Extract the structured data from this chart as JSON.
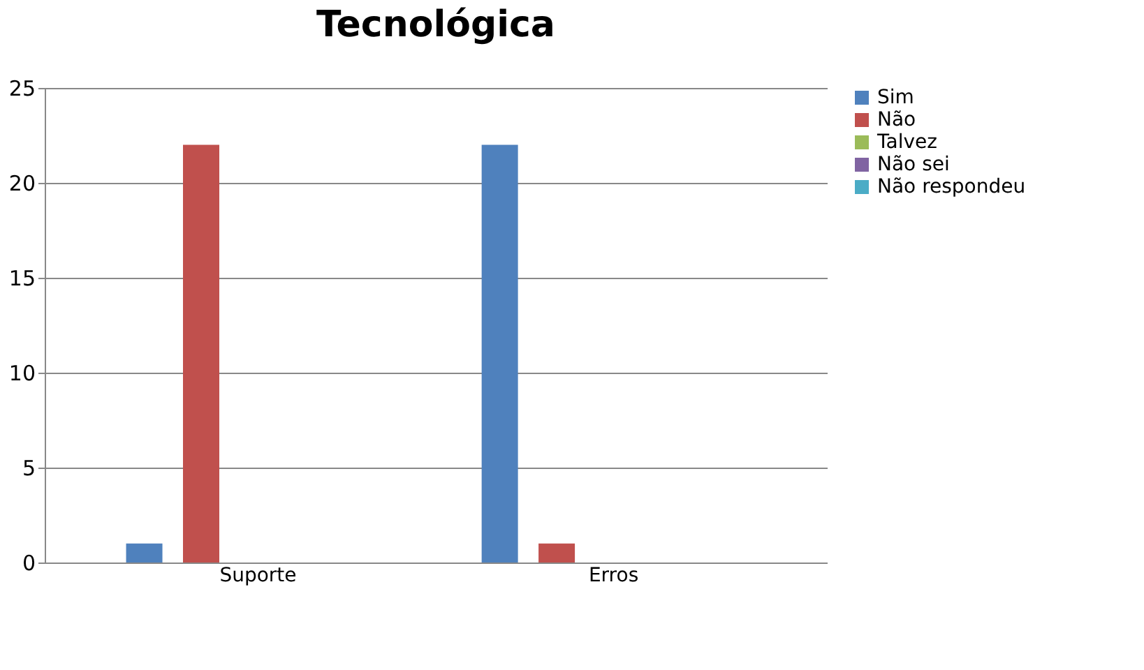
{
  "chart_data": {
    "type": "bar",
    "title": "Tecnológica",
    "categories": [
      "Suporte",
      "Erros"
    ],
    "series": [
      {
        "name": "Sim",
        "color": "#4f81bd",
        "values": [
          1,
          22
        ]
      },
      {
        "name": "Não",
        "color": "#c0504d",
        "values": [
          22,
          1
        ]
      },
      {
        "name": "Talvez",
        "color": "#9bbb59",
        "values": [
          0,
          0
        ]
      },
      {
        "name": "Não sei",
        "color": "#8064a2",
        "values": [
          0,
          0
        ]
      },
      {
        "name": "Não respondeu",
        "color": "#4bacc6",
        "values": [
          0,
          0
        ]
      }
    ],
    "ylim": [
      0,
      25
    ],
    "yticks": [
      0,
      5,
      10,
      15,
      20,
      25
    ],
    "grid": "y",
    "legend": "right"
  }
}
